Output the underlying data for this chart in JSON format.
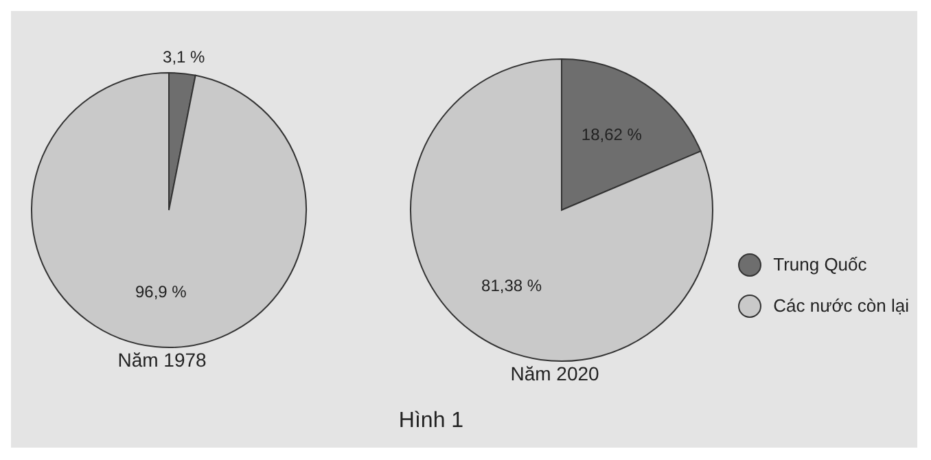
{
  "chart_data": [
    {
      "type": "pie",
      "title": "Năm 1978",
      "categories": [
        null,
        null
      ],
      "values": [
        3.1,
        96.9
      ],
      "colors": [
        "#6e6e6e",
        "#c9c9c9"
      ],
      "value_labels": [
        "3,1 %",
        "96,9 %"
      ],
      "legend": false
    },
    {
      "type": "pie",
      "title": "Năm 2020",
      "categories": [
        "Trung Quốc",
        "Các nước còn lại"
      ],
      "values": [
        18.62,
        81.38
      ],
      "colors": [
        "#6e6e6e",
        "#c9c9c9"
      ],
      "value_labels": [
        "18,62 %",
        "81,38 %"
      ],
      "legend": "right",
      "annotations": [
        "Hình 1"
      ]
    }
  ]
}
